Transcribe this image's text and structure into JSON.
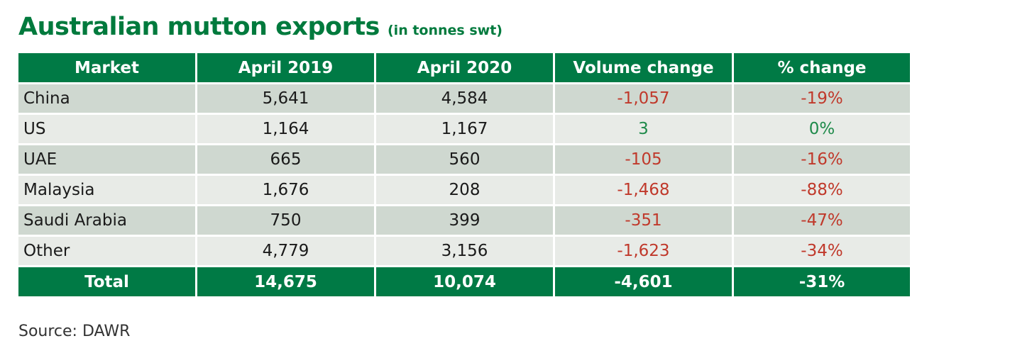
{
  "title": {
    "main": "Australian mutton exports",
    "sub": "(in tonnes swt)"
  },
  "colors": {
    "brand_green": "#007a45",
    "row_dark": "#cfd8d0",
    "row_light": "#e8ebe7",
    "negative": "#c0392b",
    "positive": "#1e8a4a"
  },
  "chart_data": {
    "type": "table",
    "columns": [
      "Market",
      "April 2019",
      "April 2020",
      "Volume change",
      "% change"
    ],
    "rows": [
      {
        "market": "China",
        "april_2019": "5,641",
        "april_2020": "4,584",
        "volume_change": "-1,057",
        "pct_change": "-19%"
      },
      {
        "market": "US",
        "april_2019": "1,164",
        "april_2020": "1,167",
        "volume_change": "3",
        "pct_change": "0%"
      },
      {
        "market": "UAE",
        "april_2019": "665",
        "april_2020": "560",
        "volume_change": "-105",
        "pct_change": "-16%"
      },
      {
        "market": "Malaysia",
        "april_2019": "1,676",
        "april_2020": "208",
        "volume_change": "-1,468",
        "pct_change": "-88%"
      },
      {
        "market": "Saudi Arabia",
        "april_2019": "750",
        "april_2020": "399",
        "volume_change": "-351",
        "pct_change": "-47%"
      },
      {
        "market": "Other",
        "april_2019": "4,779",
        "april_2020": "3,156",
        "volume_change": "-1,623",
        "pct_change": "-34%"
      }
    ],
    "total": {
      "market": "Total",
      "april_2019": "14,675",
      "april_2020": "10,074",
      "volume_change": "-4,601",
      "pct_change": "-31%"
    }
  },
  "source": "Source: DAWR"
}
